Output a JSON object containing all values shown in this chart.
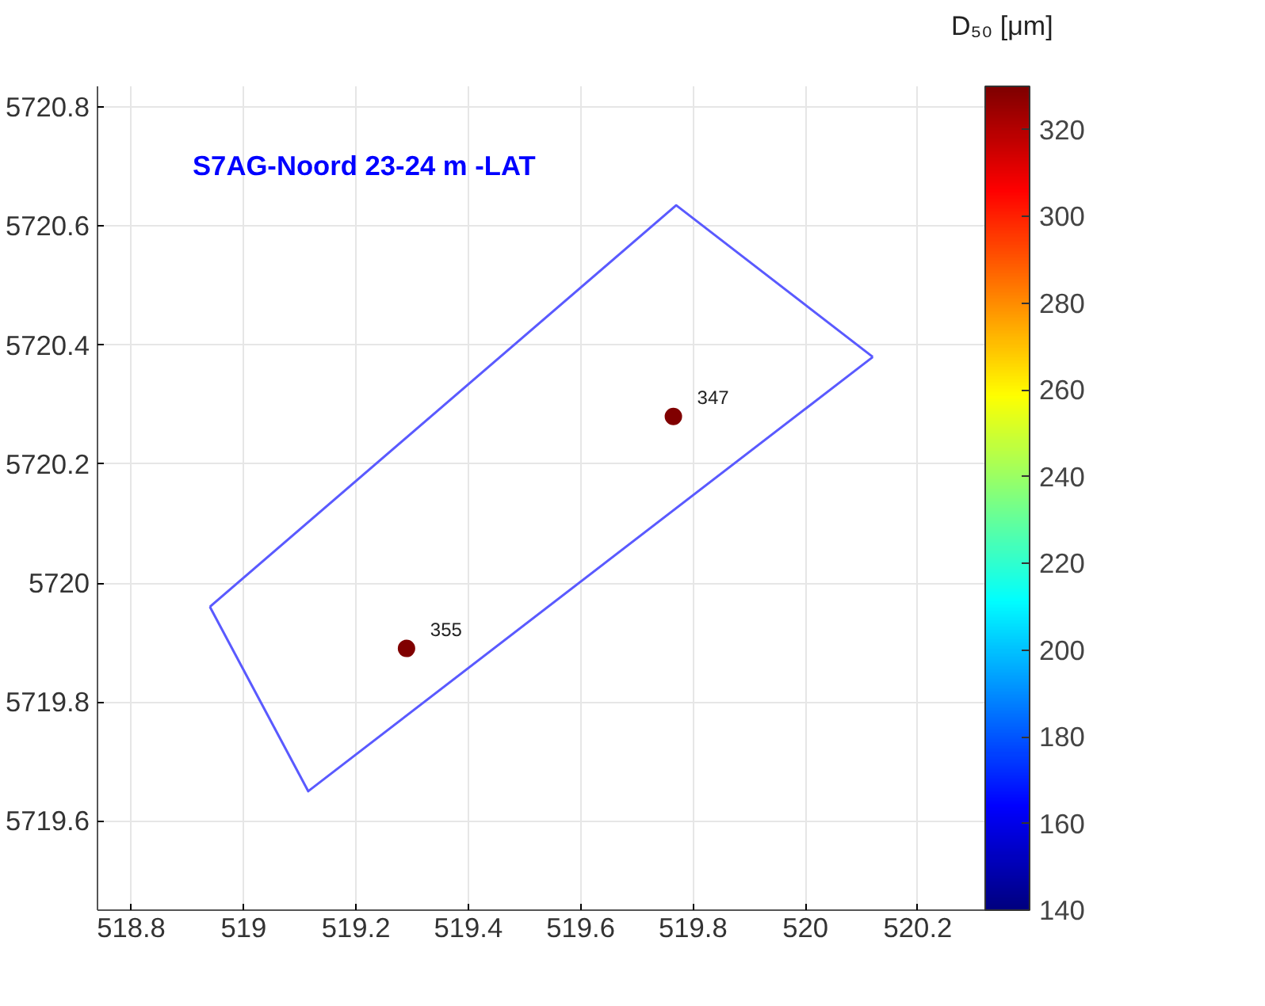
{
  "chart_data": {
    "type": "scatter",
    "xlim": [
      518.74,
      520.32
    ],
    "ylim": [
      5719.45,
      5720.835
    ],
    "xticks": [
      518.8,
      519,
      519.2,
      519.4,
      519.6,
      519.8,
      520,
      520.2
    ],
    "yticks": [
      5719.6,
      5719.8,
      5720,
      5720.2,
      5720.4,
      5720.6,
      5720.8
    ],
    "grid": true,
    "clabel": "D₅₀ [μm]",
    "clim": [
      140,
      330
    ],
    "cticks": [
      140,
      160,
      180,
      200,
      220,
      240,
      260,
      280,
      300,
      320
    ],
    "annotations": [
      "S7AG-Noord 23-24 m -LAT",
      {
        "text": "355",
        "x": 519.29,
        "y": 5719.89
      },
      {
        "text": "347",
        "x": 519.765,
        "y": 5720.28
      }
    ],
    "series": [
      {
        "type": "line",
        "marker": "none",
        "color": "#5a5aff",
        "x": [
          518.94,
          519.115,
          520.12
        ],
        "values": [
          5719.96,
          5719.65,
          5720.38
        ]
      },
      {
        "type": "line",
        "marker": "none",
        "color": "#5a5aff",
        "x": [
          518.94,
          519.77,
          520.12
        ],
        "values": [
          5719.96,
          5720.635,
          5720.38
        ]
      },
      {
        "marker": "circle",
        "color": "#800000",
        "x": [
          519.29,
          519.765
        ],
        "values": [
          5719.89,
          5720.28
        ]
      }
    ]
  }
}
